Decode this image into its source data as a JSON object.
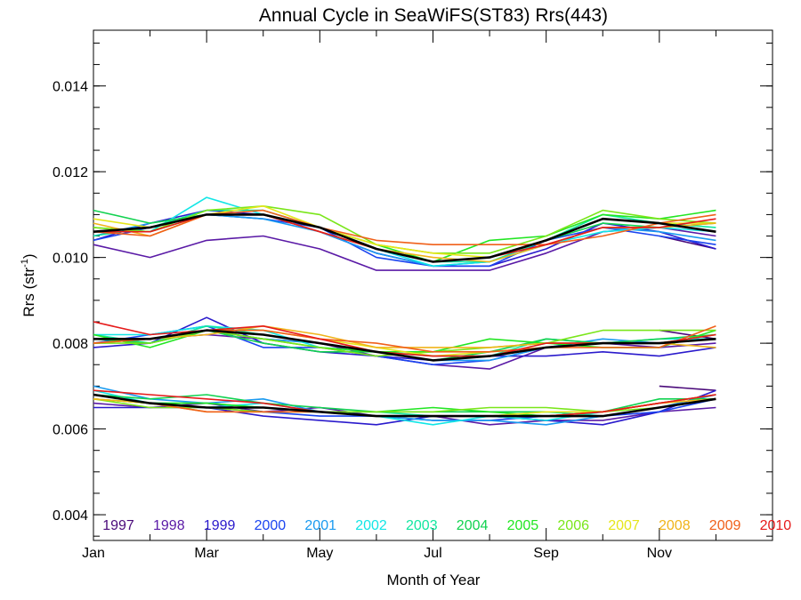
{
  "chart_data": {
    "type": "line",
    "title": "Annual Cycle in SeaWiFS(ST83) Rrs(443)",
    "xlabel": "Month of Year",
    "ylabel": "Rrs (str",
    "ylabel_sup": "-1",
    "ylabel_close": ")",
    "xlim": [
      1,
      13
    ],
    "ylim": [
      0.0034,
      0.0153
    ],
    "x_ticks": [
      {
        "value": 1,
        "label": "Jan"
      },
      {
        "value": 3,
        "label": "Mar"
      },
      {
        "value": 5,
        "label": "May"
      },
      {
        "value": 7,
        "label": "Jul"
      },
      {
        "value": 9,
        "label": "Sep"
      },
      {
        "value": 11,
        "label": "Nov"
      }
    ],
    "y_ticks": [
      {
        "value": 0.004,
        "label": "0.004"
      },
      {
        "value": 0.006,
        "label": "0.006"
      },
      {
        "value": 0.008,
        "label": "0.008"
      },
      {
        "value": 0.01,
        "label": "0.010"
      },
      {
        "value": 0.012,
        "label": "0.012"
      },
      {
        "value": 0.014,
        "label": "0.014"
      }
    ],
    "legend_position": "bottom, inside plot",
    "x": [
      1,
      2,
      3,
      4,
      5,
      6,
      7,
      8,
      9,
      10,
      11,
      12
    ],
    "series": [
      {
        "name": "1997",
        "color": "#4a0a7a",
        "groups": [
          [
            null,
            null,
            null,
            null,
            null,
            null,
            null,
            null,
            null,
            null,
            0.0083,
            0.0081
          ],
          [
            null,
            null,
            null,
            null,
            null,
            null,
            null,
            null,
            null,
            null,
            0.0105,
            0.0102
          ],
          [
            null,
            null,
            null,
            null,
            null,
            null,
            null,
            null,
            null,
            null,
            0.007,
            0.0069
          ]
        ]
      },
      {
        "name": "1998",
        "color": "#5a1aa6",
        "groups": [
          [
            0.0103,
            0.01,
            0.0104,
            0.0105,
            0.0102,
            0.0097,
            0.0097,
            0.0097,
            0.0101,
            0.0106,
            0.0107,
            0.0105
          ],
          [
            0.008,
            0.0081,
            0.0082,
            0.0081,
            0.008,
            0.0077,
            0.0075,
            0.0074,
            0.0079,
            0.008,
            0.0079,
            0.008
          ],
          [
            0.0066,
            0.0065,
            0.0066,
            0.0064,
            0.0065,
            0.0063,
            0.0063,
            0.0061,
            0.0062,
            0.0062,
            0.0064,
            0.0065
          ]
        ]
      },
      {
        "name": "1999",
        "color": "#2a1acc",
        "groups": [
          [
            0.0104,
            0.0108,
            0.0111,
            0.011,
            0.0106,
            0.0101,
            0.0098,
            0.0098,
            0.0102,
            0.0108,
            0.0106,
            0.0102
          ],
          [
            0.0079,
            0.008,
            0.0086,
            0.008,
            0.0078,
            0.0077,
            0.0076,
            0.0077,
            0.0077,
            0.0078,
            0.0077,
            0.0079
          ],
          [
            0.0065,
            0.0065,
            0.0065,
            0.0063,
            0.0062,
            0.0061,
            0.0063,
            0.0063,
            0.0062,
            0.0061,
            0.0064,
            0.0069
          ]
        ]
      },
      {
        "name": "2000",
        "color": "#1a44f0",
        "groups": [
          [
            0.0104,
            0.0107,
            0.011,
            0.0109,
            0.0107,
            0.01,
            0.0098,
            0.0098,
            0.0104,
            0.0107,
            0.0105,
            0.0103
          ],
          [
            0.008,
            0.0082,
            0.0084,
            0.0079,
            0.0079,
            0.0077,
            0.0075,
            0.0076,
            0.0079,
            0.008,
            0.008,
            0.0081
          ],
          [
            0.0067,
            0.0066,
            0.0065,
            0.0064,
            0.0063,
            0.0063,
            0.0062,
            0.0062,
            0.0063,
            0.0063,
            0.0064,
            0.0067
          ]
        ]
      },
      {
        "name": "2001",
        "color": "#1a9af0",
        "groups": [
          [
            0.0105,
            0.0108,
            0.011,
            0.0109,
            0.0106,
            0.0101,
            0.0098,
            0.0099,
            0.0103,
            0.0107,
            0.0106,
            0.0104
          ],
          [
            0.0081,
            0.008,
            0.0083,
            0.0081,
            0.008,
            0.0078,
            0.0076,
            0.0076,
            0.0079,
            0.0081,
            0.008,
            0.0082
          ],
          [
            0.007,
            0.0067,
            0.0066,
            0.0067,
            0.0064,
            0.0063,
            0.0062,
            0.0062,
            0.0061,
            0.0063,
            0.0065,
            0.0068
          ]
        ]
      },
      {
        "name": "2002",
        "color": "#12e6e6",
        "groups": [
          [
            0.0106,
            0.0106,
            0.0114,
            0.011,
            0.0107,
            0.0102,
            0.0098,
            0.0099,
            0.0103,
            0.0106,
            0.0107,
            0.0106
          ],
          [
            0.0082,
            0.0082,
            0.0084,
            0.0083,
            0.0079,
            0.0078,
            0.0076,
            0.0077,
            0.008,
            0.008,
            0.0081,
            0.0081
          ],
          [
            0.0069,
            0.0066,
            0.0065,
            0.0066,
            0.0064,
            0.0063,
            0.0061,
            0.0063,
            0.0062,
            0.0064,
            0.0066,
            0.0067
          ]
        ]
      },
      {
        "name": "2003",
        "color": "#12e6a0",
        "groups": [
          [
            0.0105,
            0.0107,
            0.0111,
            0.0111,
            0.0107,
            0.0102,
            0.0099,
            0.0099,
            0.0104,
            0.011,
            0.0108,
            0.0107
          ],
          [
            0.0082,
            0.008,
            0.0084,
            0.0082,
            0.008,
            0.0078,
            0.0077,
            0.0077,
            0.0081,
            0.008,
            0.008,
            0.0081
          ],
          [
            0.0068,
            0.0066,
            0.0066,
            0.0065,
            0.0064,
            0.0064,
            0.0063,
            0.0063,
            0.0064,
            0.0063,
            0.0065,
            0.0067
          ]
        ]
      },
      {
        "name": "2004",
        "color": "#12d250",
        "groups": [
          [
            0.0111,
            0.0108,
            0.011,
            0.011,
            0.0107,
            0.0102,
            0.0099,
            0.01,
            0.0104,
            0.0108,
            0.0107,
            0.0108
          ],
          [
            0.0081,
            0.008,
            0.0083,
            0.008,
            0.0078,
            0.0078,
            0.0076,
            0.0078,
            0.0081,
            0.008,
            0.0081,
            0.0082
          ],
          [
            0.0068,
            0.0067,
            0.0068,
            0.0066,
            0.0065,
            0.0064,
            0.0064,
            0.0064,
            0.0064,
            0.0064,
            0.0067,
            0.0067
          ]
        ]
      },
      {
        "name": "2005",
        "color": "#22e622",
        "groups": [
          [
            0.0107,
            0.0106,
            0.011,
            0.011,
            0.0107,
            0.0103,
            0.0099,
            0.0104,
            0.0105,
            0.011,
            0.0109,
            0.0111
          ],
          [
            0.0082,
            0.0079,
            0.0083,
            0.0081,
            0.0079,
            0.0078,
            0.0078,
            0.0081,
            0.008,
            0.0079,
            0.0079,
            0.0083
          ],
          [
            0.0067,
            0.0066,
            0.0066,
            0.0065,
            0.0064,
            0.0064,
            0.0065,
            0.0064,
            0.0063,
            0.0064,
            0.0066,
            0.0068
          ]
        ]
      },
      {
        "name": "2006",
        "color": "#7ae61a",
        "groups": [
          [
            0.0107,
            0.0106,
            0.0111,
            0.0112,
            0.011,
            0.0103,
            0.0101,
            0.0101,
            0.0105,
            0.0111,
            0.0109,
            0.0108
          ],
          [
            0.008,
            0.008,
            0.0083,
            0.0081,
            0.0079,
            0.0077,
            0.0078,
            0.0079,
            0.008,
            0.0083,
            0.0083,
            0.0083
          ],
          [
            0.0067,
            0.0065,
            0.0065,
            0.0064,
            0.0064,
            0.0064,
            0.0064,
            0.0065,
            0.0065,
            0.0064,
            0.0065,
            0.0067
          ]
        ]
      },
      {
        "name": "2007",
        "color": "#e6e61a",
        "groups": [
          [
            0.0109,
            0.0107,
            0.011,
            0.0112,
            0.0107,
            0.0103,
            0.0101,
            0.01,
            0.0104,
            0.0109,
            0.0108,
            0.0108
          ],
          [
            0.0081,
            0.0081,
            0.0083,
            0.0083,
            0.0081,
            0.0079,
            0.0077,
            0.0078,
            0.0079,
            0.008,
            0.008,
            0.0082
          ],
          [
            0.0067,
            0.0066,
            0.0065,
            0.0065,
            0.0064,
            0.0063,
            0.0063,
            0.0063,
            0.0064,
            0.0064,
            0.0066,
            0.0067
          ]
        ]
      },
      {
        "name": "2008",
        "color": "#f0b41a",
        "groups": [
          [
            0.0108,
            0.0105,
            0.011,
            0.011,
            0.0106,
            0.0102,
            0.01,
            0.0099,
            0.0103,
            0.0107,
            0.0107,
            0.0108
          ],
          [
            0.008,
            0.0081,
            0.0082,
            0.0084,
            0.0082,
            0.0079,
            0.0079,
            0.0079,
            0.008,
            0.008,
            0.008,
            0.0079
          ],
          [
            0.0067,
            0.0066,
            0.0064,
            0.0064,
            0.0064,
            0.0063,
            0.0063,
            0.0063,
            0.0063,
            0.0064,
            0.0066,
            0.0067
          ]
        ]
      },
      {
        "name": "2009",
        "color": "#f0601a",
        "groups": [
          [
            0.0106,
            0.0105,
            0.011,
            0.0111,
            0.0107,
            0.0104,
            0.0103,
            0.0103,
            0.0103,
            0.0105,
            0.0108,
            0.011
          ],
          [
            0.008,
            0.0081,
            0.0083,
            0.0083,
            0.0081,
            0.008,
            0.0078,
            0.0078,
            0.0079,
            0.0079,
            0.0079,
            0.0084
          ],
          [
            0.0068,
            0.0066,
            0.0064,
            0.0064,
            0.0064,
            0.0063,
            0.0063,
            0.0063,
            0.0063,
            0.0064,
            0.0066,
            0.0068
          ]
        ]
      },
      {
        "name": "2010",
        "color": "#e61a1a",
        "groups": [
          [
            0.0106,
            0.0106,
            0.011,
            0.011,
            0.0106,
            0.0102,
            0.0099,
            0.01,
            0.0103,
            0.0107,
            0.0107,
            0.0109
          ],
          [
            0.0085,
            0.0082,
            0.0083,
            0.0084,
            0.0081,
            0.0078,
            0.0077,
            0.0077,
            0.008,
            0.008,
            0.008,
            0.0082
          ],
          [
            0.0069,
            0.0068,
            0.0067,
            0.0066,
            0.0064,
            0.0063,
            0.0063,
            0.0063,
            0.0063,
            0.0064,
            0.0066,
            0.0068
          ]
        ]
      },
      {
        "name": "mean",
        "color": "#000000",
        "in_legend": false,
        "groups": [
          [
            0.0106,
            0.0107,
            0.011,
            0.011,
            0.0107,
            0.0102,
            0.0099,
            0.01,
            0.0104,
            0.0109,
            0.0108,
            0.0106
          ],
          [
            0.0081,
            0.0081,
            0.0083,
            0.0082,
            0.008,
            0.0078,
            0.0076,
            0.0077,
            0.0079,
            0.008,
            0.008,
            0.0081
          ],
          [
            0.0068,
            0.0066,
            0.0065,
            0.0065,
            0.0064,
            0.0063,
            0.0063,
            0.0063,
            0.0063,
            0.0063,
            0.0065,
            0.0067
          ]
        ]
      }
    ]
  }
}
